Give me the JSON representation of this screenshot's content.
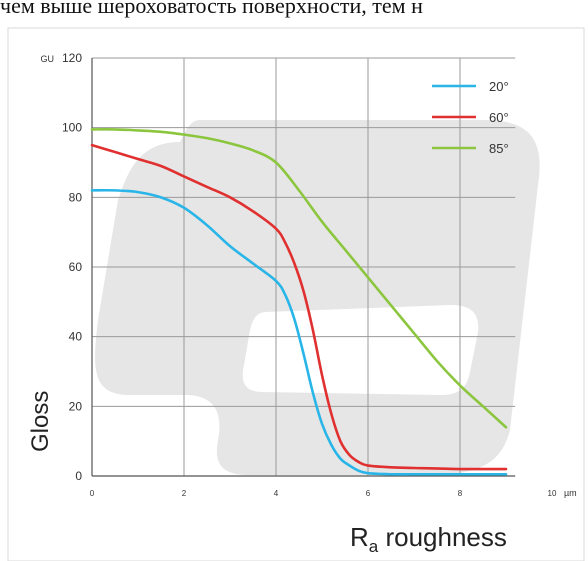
{
  "header": {
    "caption": "чем выше шероховатость поверхности, тем н"
  },
  "chart_data": {
    "type": "line",
    "unit_y": "GU",
    "unit_x": "µm",
    "ylabel": "Gloss",
    "xlabel_main": "R",
    "xlabel_sub": "a",
    "xlabel_rest": " roughness",
    "xlim": [
      0,
      10
    ],
    "ylim": [
      0,
      120
    ],
    "x_ticks": [
      0,
      2,
      4,
      6,
      8,
      10
    ],
    "y_ticks": [
      0,
      20,
      40,
      60,
      80,
      100,
      120
    ],
    "grid": true,
    "legend_position": "top-right",
    "series": [
      {
        "name": "20°",
        "color": "#29b5e8",
        "x": [
          0,
          0.5,
          1,
          1.5,
          2,
          2.5,
          3,
          3.5,
          4,
          4.2,
          4.4,
          4.6,
          4.8,
          5,
          5.2,
          5.4,
          5.6,
          5.8,
          6,
          6.5,
          7,
          8,
          9
        ],
        "y": [
          82,
          82,
          81.5,
          80,
          77,
          72,
          66,
          61,
          56,
          52,
          45,
          35,
          24,
          15,
          9,
          5,
          3,
          1.5,
          0.8,
          0.5,
          0.5,
          0.5,
          0.5
        ]
      },
      {
        "name": "60°",
        "color": "#e03030",
        "x": [
          0,
          0.5,
          1,
          1.5,
          2,
          2.5,
          3,
          3.5,
          4,
          4.2,
          4.4,
          4.6,
          4.8,
          5,
          5.2,
          5.4,
          5.6,
          5.8,
          6,
          6.5,
          7,
          8,
          9
        ],
        "y": [
          95,
          93,
          91,
          89,
          86,
          83,
          80,
          76,
          71,
          67,
          61,
          53,
          42,
          29,
          18,
          10,
          6,
          4,
          3,
          2.5,
          2.3,
          2,
          2
        ]
      },
      {
        "name": "85°",
        "color": "#8cc63f",
        "x": [
          0,
          0.5,
          1,
          1.5,
          2,
          2.5,
          3,
          3.5,
          4,
          4.5,
          5,
          5.5,
          6,
          6.5,
          7,
          7.5,
          8,
          8.5,
          9
        ],
        "y": [
          99.5,
          99.5,
          99.2,
          98.8,
          98,
          97,
          95.5,
          93.5,
          90,
          82,
          73,
          65,
          57,
          49,
          41,
          33,
          26,
          20,
          14
        ]
      }
    ]
  }
}
